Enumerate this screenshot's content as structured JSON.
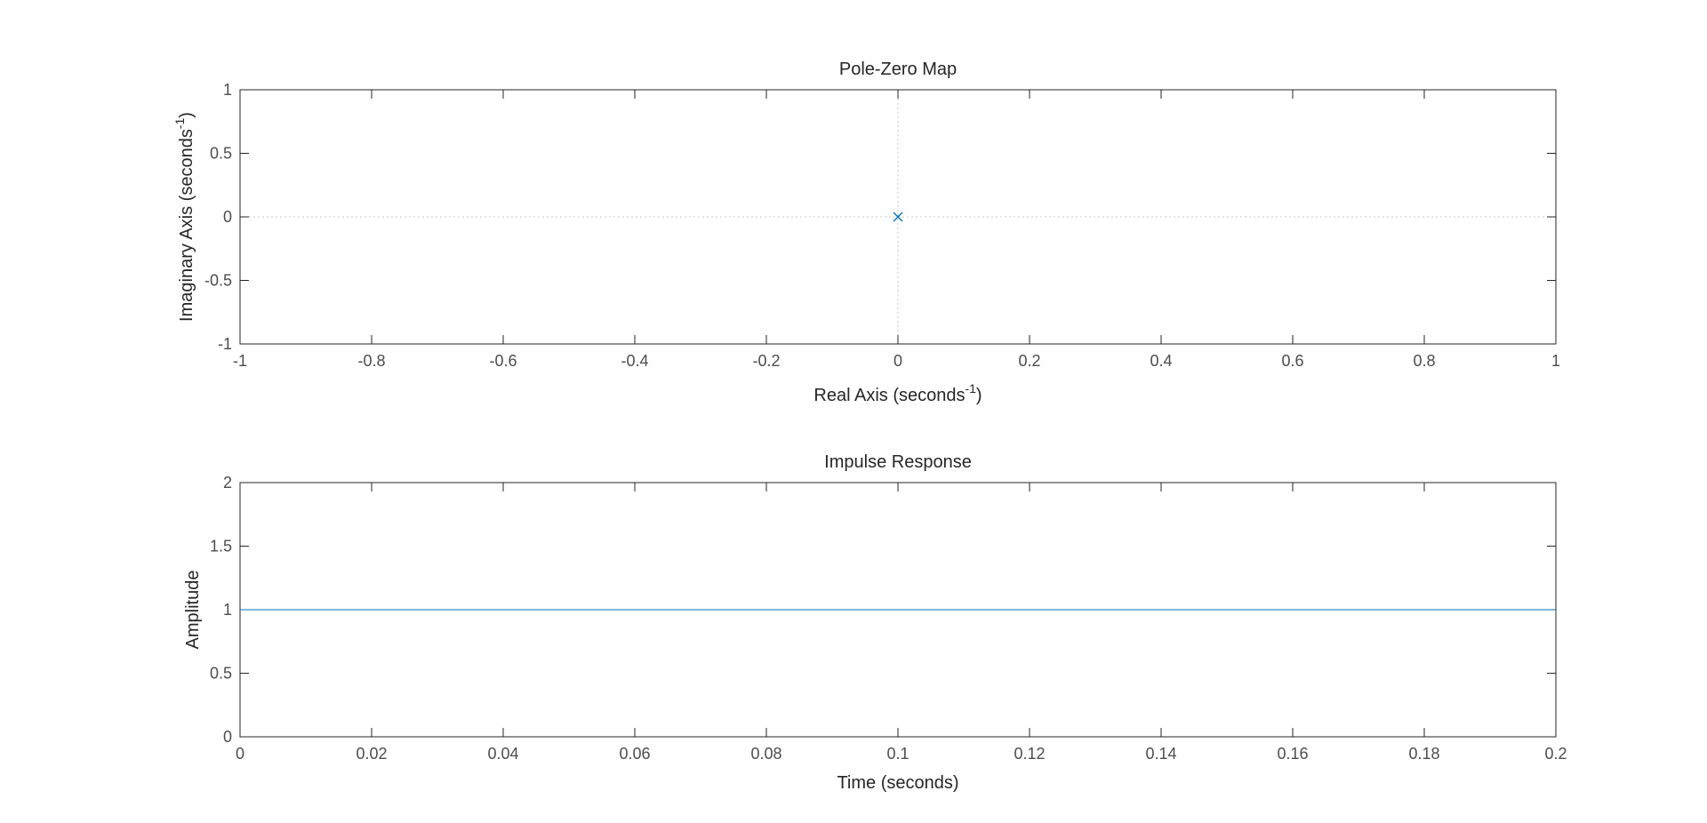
{
  "colors": {
    "series": "#0072bd",
    "axis": "#262626",
    "tick_label": "#4d4d4d",
    "reference_line": "#c8c8c8"
  },
  "chart_data": [
    {
      "type": "scatter",
      "title": "Pole-Zero Map",
      "xlabel": "Real Axis (seconds",
      "xlabel_sup": "-1",
      "xlabel_tail": ")",
      "ylabel": "Imaginary Axis (seconds",
      "ylabel_sup": "-1",
      "ylabel_tail": ")",
      "xlim": [
        -1,
        1
      ],
      "ylim": [
        -1,
        1
      ],
      "xticks": [
        "-1",
        "-0.8",
        "-0.6",
        "-0.4",
        "-0.2",
        "0",
        "0.2",
        "0.4",
        "0.6",
        "0.8",
        "1"
      ],
      "yticks": [
        "-1",
        "-0.5",
        "0",
        "0.5",
        "1"
      ],
      "grid": false,
      "reference_lines": {
        "x": 0,
        "y": 0
      },
      "poles": [
        {
          "x": 0,
          "y": 0
        }
      ],
      "zeros": []
    },
    {
      "type": "line",
      "title": "Impulse Response",
      "xlabel": "Time (seconds)",
      "ylabel": "Amplitude",
      "xlim": [
        0,
        0.2
      ],
      "ylim": [
        0,
        2
      ],
      "xticks": [
        "0",
        "0.02",
        "0.04",
        "0.06",
        "0.08",
        "0.1",
        "0.12",
        "0.14",
        "0.16",
        "0.18",
        "0.2"
      ],
      "yticks": [
        "0",
        "0.5",
        "1",
        "1.5",
        "2"
      ],
      "grid": false,
      "series": [
        {
          "x": [
            0,
            0.2
          ],
          "y": [
            1,
            1
          ]
        }
      ]
    }
  ]
}
